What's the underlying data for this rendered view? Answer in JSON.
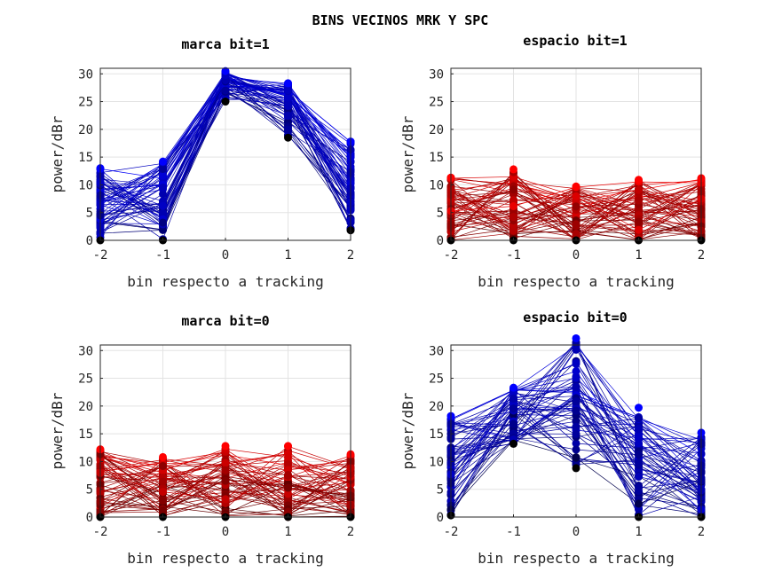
{
  "figure": {
    "title": "BINS VECINOS MRK Y SPC"
  },
  "chart_data": [
    {
      "type": "line",
      "title": "marca bit=1",
      "xlabel": "bin respecto a tracking",
      "ylabel": "power/dBr",
      "x": [
        -2,
        -1,
        0,
        1,
        2
      ],
      "xlim": [
        -2,
        2
      ],
      "ylim": [
        0,
        31
      ],
      "xticks": [
        -2,
        -1,
        0,
        1,
        2
      ],
      "yticks": [
        0,
        5,
        10,
        15,
        20,
        25,
        30
      ],
      "grid": true,
      "color_scale": [
        "#000000",
        "#0000ff"
      ],
      "n_series": 60,
      "profile_min": [
        0,
        0,
        25,
        18.5,
        1.8
      ],
      "profile_max": [
        13,
        14.2,
        30.5,
        28.3,
        17.8
      ]
    },
    {
      "type": "line",
      "title": "espacio bit=1",
      "xlabel": "bin respecto a tracking",
      "ylabel": "power/dBr",
      "x": [
        -2,
        -1,
        0,
        1,
        2
      ],
      "xlim": [
        -2,
        2
      ],
      "ylim": [
        0,
        31
      ],
      "xticks": [
        -2,
        -1,
        0,
        1,
        2
      ],
      "yticks": [
        0,
        5,
        10,
        15,
        20,
        25,
        30
      ],
      "grid": true,
      "color_scale": [
        "#000000",
        "#ff0000"
      ],
      "n_series": 60,
      "profile_min": [
        0,
        0,
        0,
        0,
        0
      ],
      "profile_max": [
        11.3,
        12.8,
        9.7,
        10.9,
        11.2
      ]
    },
    {
      "type": "line",
      "title": "marca bit=0",
      "xlabel": "bin respecto a tracking",
      "ylabel": "power/dBr",
      "x": [
        -2,
        -1,
        0,
        1,
        2
      ],
      "xlim": [
        -2,
        2
      ],
      "ylim": [
        0,
        31
      ],
      "xticks": [
        -2,
        -1,
        0,
        1,
        2
      ],
      "yticks": [
        0,
        5,
        10,
        15,
        20,
        25,
        30
      ],
      "grid": true,
      "color_scale": [
        "#000000",
        "#ff0000"
      ],
      "n_series": 60,
      "profile_min": [
        0,
        0,
        0,
        0,
        0
      ],
      "profile_max": [
        12.2,
        10.8,
        12.8,
        12.8,
        11.3
      ]
    },
    {
      "type": "line",
      "title": "espacio bit=0",
      "xlabel": "bin respecto a tracking",
      "ylabel": "power/dBr",
      "x": [
        -2,
        -1,
        0,
        1,
        2
      ],
      "xlim": [
        -2,
        2
      ],
      "ylim": [
        0,
        31
      ],
      "xticks": [
        -2,
        -1,
        0,
        1,
        2
      ],
      "yticks": [
        0,
        5,
        10,
        15,
        20,
        25,
        30
      ],
      "grid": true,
      "color_scale": [
        "#000000",
        "#0000ff"
      ],
      "n_series": 60,
      "profile_min": [
        0.3,
        13.2,
        8.8,
        0,
        0
      ],
      "profile_max": [
        18.2,
        23.3,
        32.2,
        19.7,
        15.2
      ]
    }
  ]
}
